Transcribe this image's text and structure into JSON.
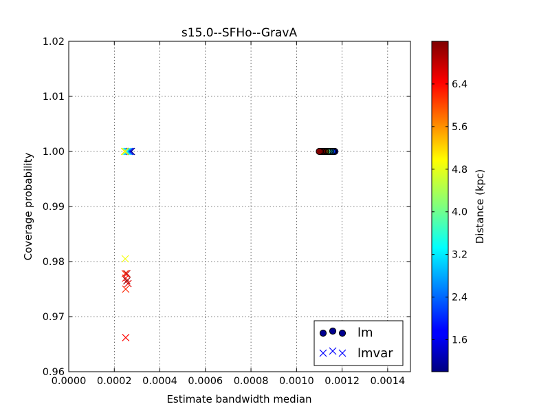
{
  "chart_data": {
    "type": "scatter",
    "title": "s15.0--SFHo--GravA",
    "xlabel": "Estimate bandwidth median",
    "ylabel": "Coverage probability",
    "xlim": [
      0.0,
      0.0015
    ],
    "ylim": [
      0.96,
      1.02
    ],
    "x_ticks": [
      "0.0000",
      "0.0002",
      "0.0004",
      "0.0006",
      "0.0008",
      "0.0010",
      "0.0012",
      "0.0014"
    ],
    "y_ticks": [
      "0.96",
      "0.97",
      "0.98",
      "0.99",
      "1.00",
      "1.01",
      "1.02"
    ],
    "grid": true,
    "legend_position": "bottom-right",
    "colorbar": {
      "label": "Distance (kpc)",
      "range": [
        1.0,
        7.2
      ],
      "ticks": [
        "1.6",
        "2.4",
        "3.2",
        "4.0",
        "4.8",
        "5.6",
        "6.4"
      ],
      "colormap": "jet"
    },
    "series": [
      {
        "name": "lm",
        "marker": "circle",
        "points": [
          {
            "x": 0.001168,
            "y": 1.0,
            "distance": 1.0
          },
          {
            "x": 0.001162,
            "y": 1.0,
            "distance": 1.6
          },
          {
            "x": 0.001156,
            "y": 1.0,
            "distance": 2.2
          },
          {
            "x": 0.00115,
            "y": 1.0,
            "distance": 2.6
          },
          {
            "x": 0.001145,
            "y": 1.0,
            "distance": 3.0
          },
          {
            "x": 0.00114,
            "y": 1.0,
            "distance": 3.4
          },
          {
            "x": 0.001136,
            "y": 1.0,
            "distance": 3.8
          },
          {
            "x": 0.00113,
            "y": 1.0,
            "distance": 4.4
          },
          {
            "x": 0.001126,
            "y": 1.0,
            "distance": 5.0
          },
          {
            "x": 0.001122,
            "y": 1.0,
            "distance": 5.6
          },
          {
            "x": 0.001118,
            "y": 1.0,
            "distance": 6.0
          },
          {
            "x": 0.001114,
            "y": 1.0,
            "distance": 6.4
          },
          {
            "x": 0.00111,
            "y": 1.0,
            "distance": 6.8
          },
          {
            "x": 0.001105,
            "y": 1.0,
            "distance": 7.0
          },
          {
            "x": 0.0011,
            "y": 1.0,
            "distance": 7.2
          }
        ]
      },
      {
        "name": "lmvar",
        "marker": "x",
        "points": [
          {
            "x": 0.000275,
            "y": 1.0,
            "distance": 1.0
          },
          {
            "x": 0.00027,
            "y": 1.0,
            "distance": 1.6
          },
          {
            "x": 0.000265,
            "y": 1.0,
            "distance": 2.2
          },
          {
            "x": 0.00026,
            "y": 1.0,
            "distance": 2.8
          },
          {
            "x": 0.000255,
            "y": 1.0,
            "distance": 3.4
          },
          {
            "x": 0.00025,
            "y": 1.0,
            "distance": 4.4
          },
          {
            "x": 0.000245,
            "y": 1.0,
            "distance": 5.0
          },
          {
            "x": 0.000248,
            "y": 0.9805,
            "distance": 4.8
          },
          {
            "x": 0.000248,
            "y": 0.9778,
            "distance": 6.2
          },
          {
            "x": 0.000255,
            "y": 0.9778,
            "distance": 6.8
          },
          {
            "x": 0.00025,
            "y": 0.977,
            "distance": 6.4
          },
          {
            "x": 0.000255,
            "y": 0.9765,
            "distance": 7.2
          },
          {
            "x": 0.00026,
            "y": 0.976,
            "distance": 6.6
          },
          {
            "x": 0.00025,
            "y": 0.975,
            "distance": 6.2
          },
          {
            "x": 0.00025,
            "y": 0.9662,
            "distance": 6.4
          }
        ]
      }
    ]
  }
}
